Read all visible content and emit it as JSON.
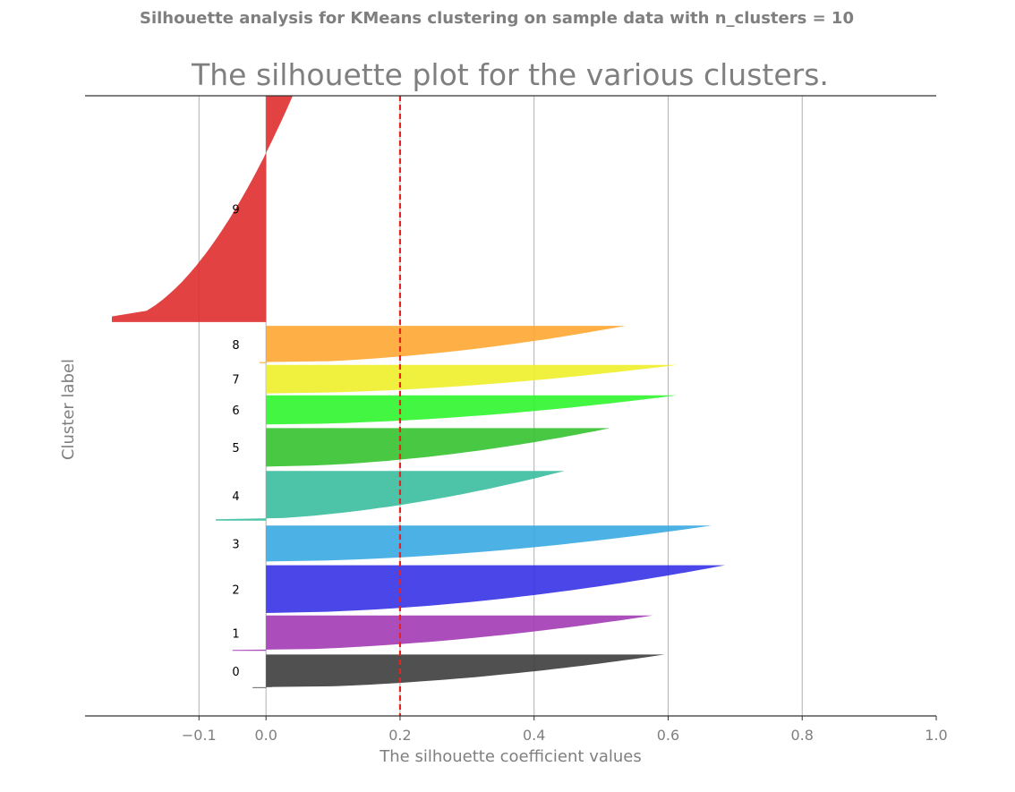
{
  "figure": {
    "suptitle": "Silhouette analysis for KMeans clustering on sample data with n_clusters = 10"
  },
  "chart_data": {
    "type": "area",
    "title": "The silhouette plot for the various clusters.",
    "xlabel": "The silhouette coefficient values",
    "ylabel": "Cluster label",
    "xlim": [
      -0.27,
      1.0
    ],
    "ylim": [
      0,
      100
    ],
    "xticks": [
      -0.1,
      0.0,
      0.2,
      0.4,
      0.6,
      0.8,
      1.0
    ],
    "xtick_labels": [
      "−0.1",
      "0.0",
      "0.2",
      "0.4",
      "0.6",
      "0.8",
      "1.0"
    ],
    "grid": "vertical",
    "average_silhouette_score": 0.2,
    "reference_line_color": "#e8231e",
    "clusters": [
      {
        "label": "0",
        "color": "#3d3d3d",
        "y_start": 4.5,
        "y_end": 9.9,
        "max": 0.595,
        "min": -0.02
      },
      {
        "label": "1",
        "color": "#a23bb5",
        "y_start": 10.5,
        "y_end": 16.2,
        "max": 0.577,
        "min": -0.05
      },
      {
        "label": "2",
        "color": "#3632e5",
        "y_start": 16.6,
        "y_end": 24.3,
        "max": 0.685,
        "min": 0.0
      },
      {
        "label": "3",
        "color": "#38a8e2",
        "y_start": 24.9,
        "y_end": 30.7,
        "max": 0.665,
        "min": 0.0
      },
      {
        "label": "4",
        "color": "#3abd9f",
        "y_start": 31.5,
        "y_end": 39.5,
        "max": 0.445,
        "min": -0.075
      },
      {
        "label": "5",
        "color": "#35c22f",
        "y_start": 40.2,
        "y_end": 46.4,
        "max": 0.513,
        "min": 0.0
      },
      {
        "label": "6",
        "color": "#2ef52e",
        "y_start": 47.0,
        "y_end": 51.7,
        "max": 0.613,
        "min": 0.0
      },
      {
        "label": "7",
        "color": "#eeee2a",
        "y_start": 52.0,
        "y_end": 56.6,
        "max": 0.613,
        "min": 0.0
      },
      {
        "label": "8",
        "color": "#fea632",
        "y_start": 56.9,
        "y_end": 62.9,
        "max": 0.536,
        "min": -0.01
      },
      {
        "label": "9",
        "color": "#e02d2d",
        "y_start": 63.5,
        "y_end": 100.0,
        "max": 0.04,
        "min": -0.23
      }
    ]
  }
}
